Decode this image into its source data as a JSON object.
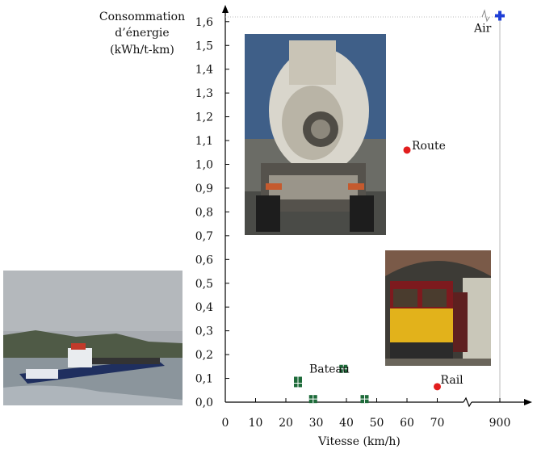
{
  "chart_data": {
    "type": "scatter",
    "ylabel_lines": [
      "Consommation",
      "d’énergie",
      "(kWh/t-km)"
    ],
    "xlabel": "Vitesse (km/h)",
    "x_ticks": [
      "0",
      "10",
      "20",
      "30",
      "40",
      "50",
      "60",
      "70",
      "900"
    ],
    "y_ticks": [
      "0,0",
      "0,1",
      "0,2",
      "0,3",
      "0,4",
      "0,5",
      "0,6",
      "0,7",
      "0,8",
      "0,9",
      "1,0",
      "1,1",
      "1,2",
      "1,3",
      "1,4",
      "1,5",
      "1,6"
    ],
    "ylim": [
      0,
      1.6
    ],
    "x_axis_break": "between 70 and 900",
    "grid": false,
    "series": [
      {
        "name": "Bateau",
        "color": "#1e6b3a",
        "marker": "square-cross",
        "points": [
          {
            "x": 24,
            "y": 0.09
          },
          {
            "x": 24,
            "y": 0.08
          },
          {
            "x": 29,
            "y": 0.013
          },
          {
            "x": 39,
            "y": 0.14
          },
          {
            "x": 46,
            "y": 0.013
          }
        ]
      },
      {
        "name": "Route",
        "color": "#e21d1d",
        "marker": "circle",
        "points": [
          {
            "x": 60,
            "y": 1.06
          }
        ]
      },
      {
        "name": "Rail",
        "color": "#e21d1d",
        "marker": "circle",
        "points": [
          {
            "x": 70,
            "y": 0.065
          }
        ]
      },
      {
        "name": "Air",
        "color": "#1f3fd6",
        "marker": "plus",
        "points": [
          {
            "x": 900,
            "y": 1.625
          }
        ]
      }
    ]
  },
  "photos": [
    "truck-photo",
    "train-photo",
    "barge-photo"
  ]
}
